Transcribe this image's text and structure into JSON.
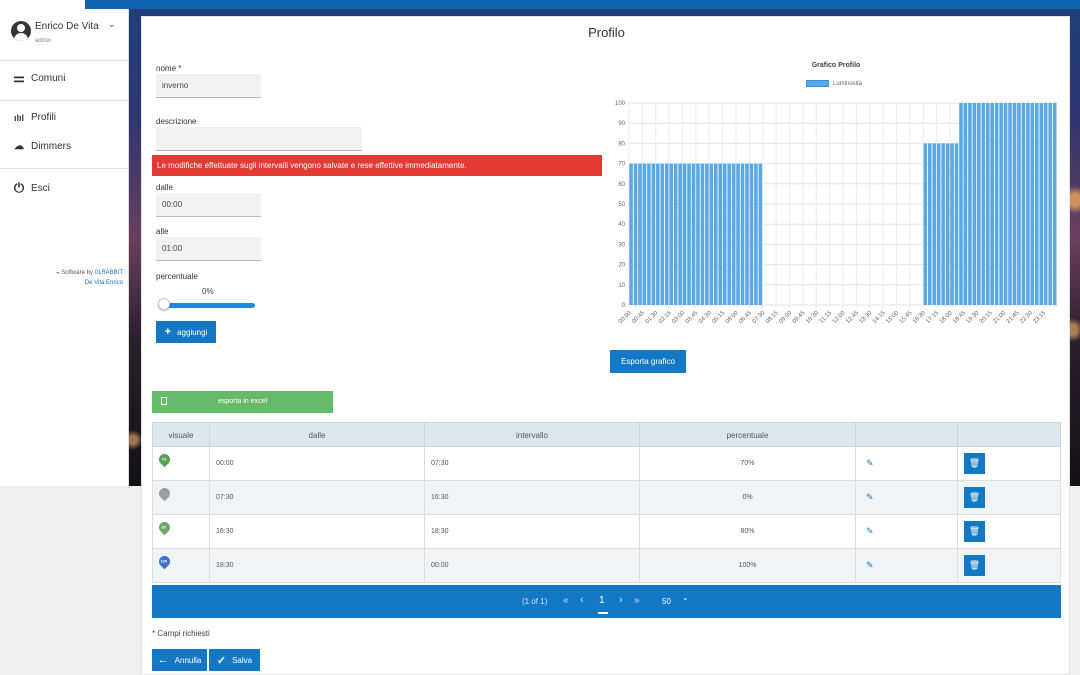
{
  "user": {
    "name": "Enrico De Vita",
    "role": "admin"
  },
  "nav": [
    {
      "label": "Comuni",
      "icon": "signpost-icon"
    },
    {
      "label": "Profili",
      "icon": "bar-chart-icon"
    },
    {
      "label": "Dimmers",
      "icon": "bulbs-icon"
    },
    {
      "label": "Esci",
      "icon": "power-icon"
    }
  ],
  "credit": {
    "prefix": "Software by",
    "company": "01RABBIT",
    "author": "De Vita Enrico"
  },
  "page_title": "Profilo",
  "form": {
    "nome_label": "nome *",
    "nome_value": "inverno",
    "descrizione_label": "descrizione",
    "descrizione_value": "",
    "alert": "Le modifiche effettuate sugli intervalli vengono salvate e rese effettive immediatamente.",
    "dalle_label": "dalle",
    "dalle_value": "00:00",
    "alle_label": "alle",
    "alle_value": "01:00",
    "percentuale_label": "percentuale",
    "percentuale_value": "0%",
    "aggiungi_label": "aggiungi"
  },
  "export_excel_label": "esporta in excel",
  "export_chart_label": "Esporta grafico",
  "chart_data": {
    "type": "bar",
    "title": "Grafico Profilo",
    "series": [
      {
        "name": "Luminosità",
        "color": "#5aa8e6"
      }
    ],
    "x_tick_labels": [
      "00:00",
      "00:45",
      "01:30",
      "02:15",
      "03:00",
      "03:45",
      "04:30",
      "05:15",
      "06:00",
      "06:45",
      "07:30",
      "08:15",
      "09:00",
      "09:45",
      "10:30",
      "11:15",
      "12:00",
      "12:45",
      "13:30",
      "14:15",
      "15:00",
      "15:45",
      "16:30",
      "17:15",
      "18:00",
      "18:45",
      "19:30",
      "20:15",
      "21:00",
      "21:45",
      "22:30",
      "23:15"
    ],
    "interval_minutes": 15,
    "segments": [
      {
        "from": "00:00",
        "to": "07:30",
        "value": 70
      },
      {
        "from": "07:30",
        "to": "16:30",
        "value": 0
      },
      {
        "from": "16:30",
        "to": "18:30",
        "value": 80
      },
      {
        "from": "18:30",
        "to": "24:00",
        "value": 100
      }
    ],
    "ylim": [
      0,
      100
    ],
    "y_ticks": [
      0,
      10,
      20,
      30,
      40,
      50,
      60,
      70,
      80,
      90,
      100
    ],
    "grid": true,
    "legend": "top"
  },
  "table": {
    "headers": [
      "visuale",
      "dalle",
      "intervallo",
      "percentuale",
      "",
      ""
    ],
    "rows": [
      {
        "badge": "70",
        "pin_color": "#5b9e54",
        "dalle": "00:00",
        "intervallo": "07:30",
        "percentuale": "70%"
      },
      {
        "badge": "",
        "pin_color": "#9e9e9e",
        "dalle": "07:30",
        "intervallo": "16:30",
        "percentuale": "0%"
      },
      {
        "badge": "80",
        "pin_color": "#6aa96a",
        "dalle": "16:30",
        "intervallo": "18:30",
        "percentuale": "80%"
      },
      {
        "badge": "100",
        "pin_color": "#3f6fd1",
        "dalle": "18:30",
        "intervallo": "00:00",
        "percentuale": "100%"
      }
    ]
  },
  "pager": {
    "info": "(1 of 1)",
    "first": "«",
    "prev": "‹",
    "page": "1",
    "next": "›",
    "last": "»",
    "per_page": "50",
    "dropdown": "⌄"
  },
  "required_note": "* Campi richiesti",
  "buttons": {
    "annulla": "Annulla",
    "salva": "Salva"
  }
}
